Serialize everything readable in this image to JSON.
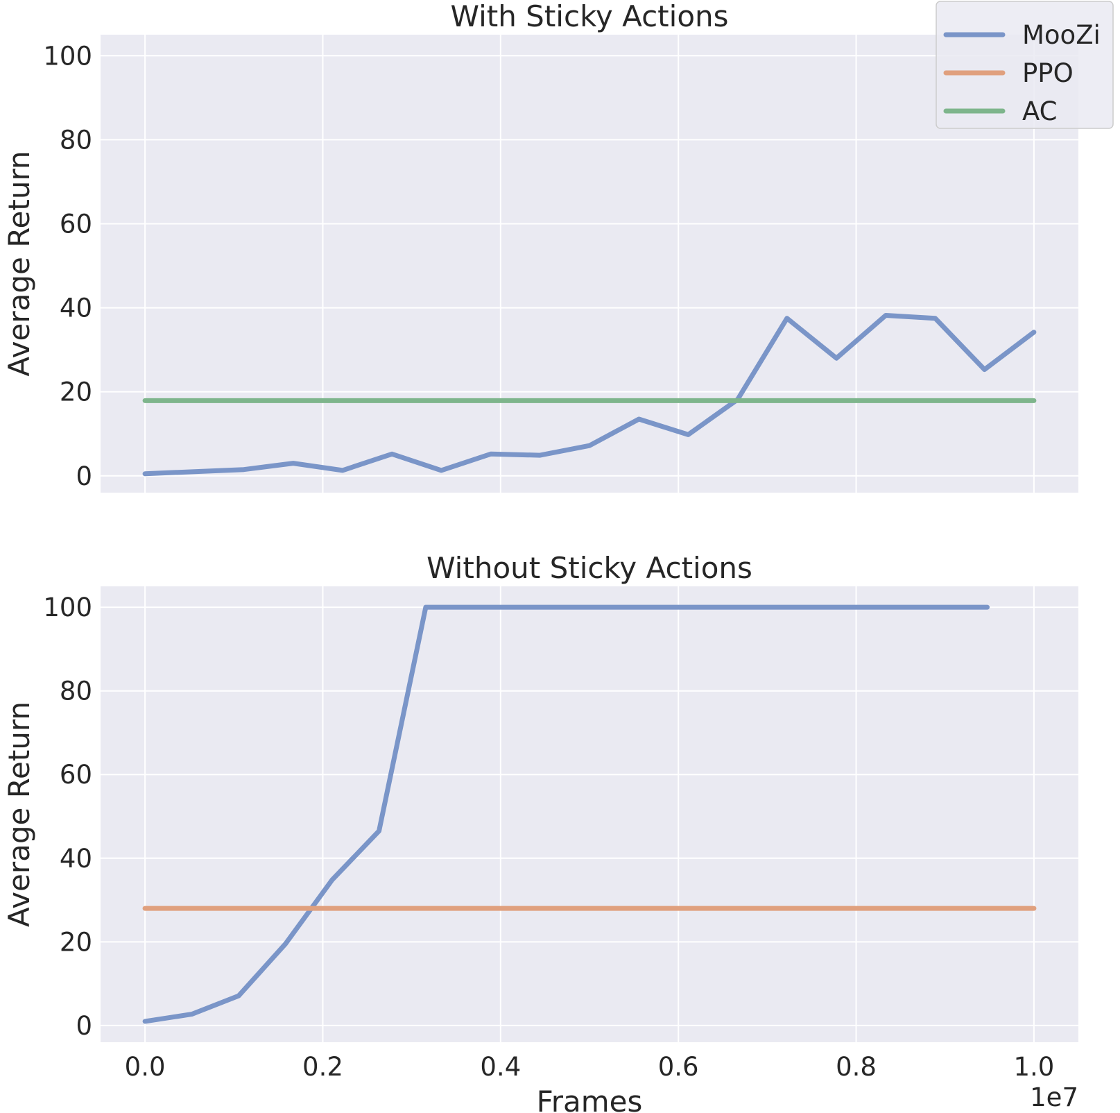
{
  "chart_data": [
    {
      "type": "line",
      "title": "With Sticky Actions",
      "xlabel": "",
      "ylabel": "Average Return",
      "xlim": [
        -0.05,
        1.05
      ],
      "ylim": [
        -4,
        105
      ],
      "x_offset_label": "",
      "xticks": [
        0.0,
        0.2,
        0.4,
        0.6,
        0.8,
        1.0
      ],
      "xtick_labels": [],
      "yticks": [
        0,
        20,
        40,
        60,
        80,
        100
      ],
      "ytick_labels": [
        "0",
        "20",
        "40",
        "60",
        "80",
        "100"
      ],
      "grid": true,
      "legend": {
        "show": true,
        "position": "top-right"
      },
      "series": [
        {
          "name": "MooZi",
          "color": "#7a95c8",
          "x": [
            0.0,
            0.0556,
            0.1111,
            0.1667,
            0.2222,
            0.2778,
            0.3333,
            0.3889,
            0.4444,
            0.5,
            0.5556,
            0.6111,
            0.6667,
            0.7222,
            0.7778,
            0.8333,
            0.8889,
            0.9444,
            1.0
          ],
          "y": [
            0.5,
            1.0,
            1.5,
            3.0,
            1.3,
            5.2,
            1.3,
            5.2,
            4.9,
            7.2,
            13.5,
            9.8,
            18.2,
            37.5,
            28.0,
            38.2,
            37.5,
            25.3,
            34.2
          ]
        },
        {
          "name": "AC",
          "color": "#7eb58c",
          "x": [
            0.0,
            1.0
          ],
          "y": [
            17.9,
            17.9
          ]
        }
      ]
    },
    {
      "type": "line",
      "title": "Without Sticky Actions",
      "xlabel": "Frames",
      "ylabel": "Average Return",
      "xlim": [
        -0.05,
        1.05
      ],
      "ylim": [
        -4,
        105
      ],
      "x_offset_label": "1e7",
      "xticks": [
        0.0,
        0.2,
        0.4,
        0.6,
        0.8,
        1.0
      ],
      "xtick_labels": [
        "0.0",
        "0.2",
        "0.4",
        "0.6",
        "0.8",
        "1.0"
      ],
      "yticks": [
        0,
        20,
        40,
        60,
        80,
        100
      ],
      "ytick_labels": [
        "0",
        "20",
        "40",
        "60",
        "80",
        "100"
      ],
      "grid": true,
      "legend": {
        "show": false
      },
      "series": [
        {
          "name": "MooZi",
          "color": "#7a95c8",
          "x": [
            0.0,
            0.0526,
            0.1053,
            0.1579,
            0.2105,
            0.2632,
            0.3158,
            0.9474
          ],
          "y": [
            1.0,
            2.7,
            7.1,
            19.5,
            34.8,
            46.5,
            100.0,
            100.0
          ]
        },
        {
          "name": "PPO",
          "color": "#e0a07e",
          "x": [
            0.0,
            1.0
          ],
          "y": [
            28.0,
            28.0
          ]
        }
      ]
    }
  ],
  "legend_entries": [
    {
      "name": "MooZi",
      "color": "#7a95c8"
    },
    {
      "name": "PPO",
      "color": "#e0a07e"
    },
    {
      "name": "AC",
      "color": "#7eb58c"
    }
  ]
}
